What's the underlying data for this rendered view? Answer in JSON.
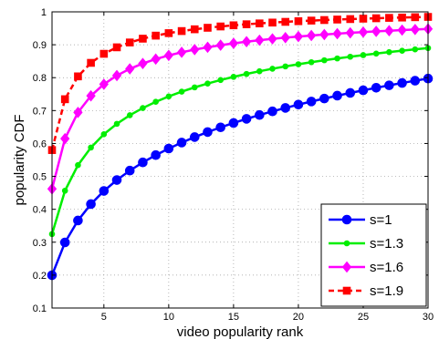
{
  "chart_data": {
    "type": "line",
    "xlabel": "video popularity rank",
    "ylabel": "popularity CDF",
    "xlim": [
      1,
      30
    ],
    "ylim": [
      0.1,
      1.0
    ],
    "xticks": [
      5,
      10,
      15,
      20,
      25,
      30
    ],
    "yticks": [
      0.1,
      0.2,
      0.3,
      0.4,
      0.5,
      0.6,
      0.7,
      0.8,
      0.9,
      1
    ],
    "grid": "dotted",
    "legend_position": "bottom-right",
    "x": [
      1,
      2,
      3,
      4,
      5,
      6,
      7,
      8,
      9,
      10,
      11,
      12,
      13,
      14,
      15,
      16,
      17,
      18,
      19,
      20,
      21,
      22,
      23,
      24,
      25,
      26,
      27,
      28,
      29,
      30
    ],
    "series": [
      {
        "name": "s=1",
        "color": "#0000ff",
        "line_style": "solid",
        "marker": "circle",
        "values": [
          0.1996,
          0.2994,
          0.3659,
          0.4158,
          0.4558,
          0.489,
          0.5175,
          0.5425,
          0.5646,
          0.5846,
          0.6027,
          0.6194,
          0.6347,
          0.649,
          0.6623,
          0.6748,
          0.6865,
          0.6976,
          0.7081,
          0.7181,
          0.7276,
          0.7366,
          0.7453,
          0.7536,
          0.7616,
          0.7693,
          0.7767,
          0.7838,
          0.7907,
          0.7973
        ]
      },
      {
        "name": "s=1.3",
        "color": "#00ee00",
        "line_style": "solid",
        "marker": "dot",
        "values": [
          0.3247,
          0.4565,
          0.5342,
          0.5877,
          0.628,
          0.6597,
          0.6858,
          0.7077,
          0.7266,
          0.743,
          0.7576,
          0.7705,
          0.7822,
          0.7928,
          0.8024,
          0.8113,
          0.8195,
          0.8271,
          0.8342,
          0.8408,
          0.847,
          0.8529,
          0.8584,
          0.8636,
          0.8685,
          0.8732,
          0.8777,
          0.8819,
          0.886,
          0.8899
        ]
      },
      {
        "name": "s=1.6",
        "color": "#ff00ff",
        "line_style": "solid",
        "marker": "diamond",
        "values": [
          0.462,
          0.6146,
          0.6944,
          0.7448,
          0.7801,
          0.8064,
          0.8268,
          0.8431,
          0.8565,
          0.8676,
          0.8771,
          0.8853,
          0.8924,
          0.8987,
          0.9043,
          0.9093,
          0.9138,
          0.9179,
          0.9216,
          0.925,
          0.9281,
          0.931,
          0.9337,
          0.9362,
          0.9385,
          0.9407,
          0.9427,
          0.9446,
          0.9464,
          0.9481
        ]
      },
      {
        "name": "s=1.9",
        "color": "#ff0000",
        "line_style": "dashed",
        "marker": "square",
        "values": [
          0.58,
          0.7345,
          0.8039,
          0.845,
          0.8725,
          0.8922,
          0.9069,
          0.9185,
          0.9277,
          0.9353,
          0.9416,
          0.947,
          0.9516,
          0.9556,
          0.9591,
          0.9622,
          0.9649,
          0.9674,
          0.9696,
          0.9716,
          0.9734,
          0.9751,
          0.9766,
          0.978,
          0.9793,
          0.9805,
          0.9817,
          0.9827,
          0.9837,
          0.9846
        ]
      }
    ]
  }
}
